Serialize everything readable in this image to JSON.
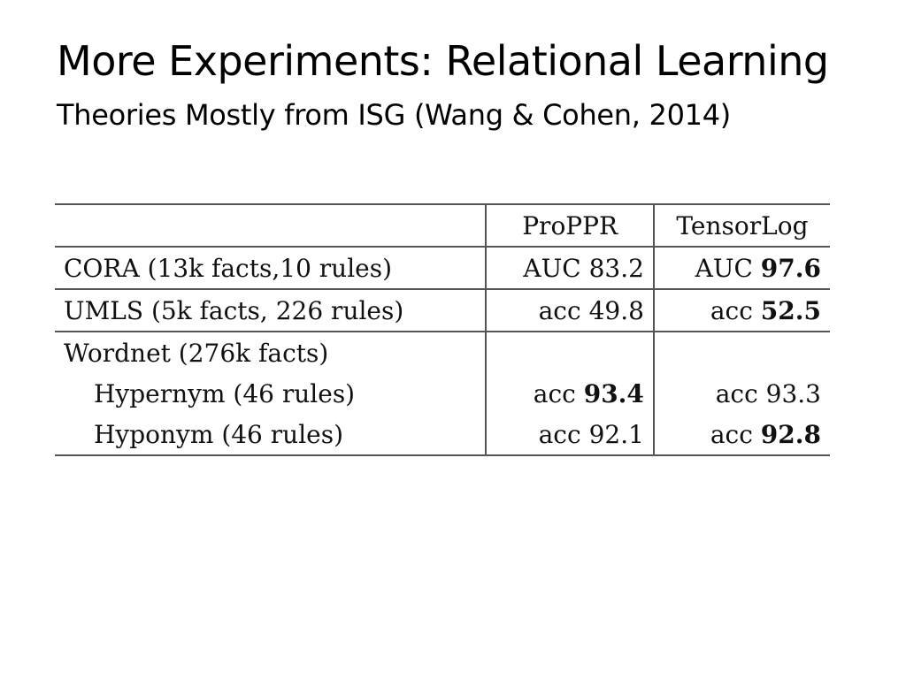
{
  "slide": {
    "title": "More Experiments: Relational Learning",
    "subtitle": "Theories Mostly from ISG (Wang & Cohen, 2014)"
  },
  "table": {
    "columns": [
      "",
      "ProPPR",
      "TensorLog"
    ],
    "rows": [
      {
        "label": "CORA (13k facts,10 rules)",
        "proppr": {
          "prefix": "AUC",
          "value": "83.2",
          "bold": false
        },
        "tensorlog": {
          "prefix": "AUC",
          "value": "97.6",
          "bold": true
        }
      },
      {
        "label": "UMLS (5k facts, 226 rules)",
        "proppr": {
          "prefix": "acc",
          "value": "49.8",
          "bold": false
        },
        "tensorlog": {
          "prefix": "acc",
          "value": "52.5",
          "bold": true
        }
      },
      {
        "label": "Wordnet (276k facts)"
      },
      {
        "label": "Hypernym (46 rules)",
        "proppr": {
          "prefix": "acc",
          "value": "93.4",
          "bold": true
        },
        "tensorlog": {
          "prefix": "acc",
          "value": "93.3",
          "bold": false
        }
      },
      {
        "label": "Hyponym (46 rules)",
        "proppr": {
          "prefix": "acc",
          "value": "92.1",
          "bold": false
        },
        "tensorlog": {
          "prefix": "acc",
          "value": "92.8",
          "bold": true
        }
      }
    ]
  }
}
